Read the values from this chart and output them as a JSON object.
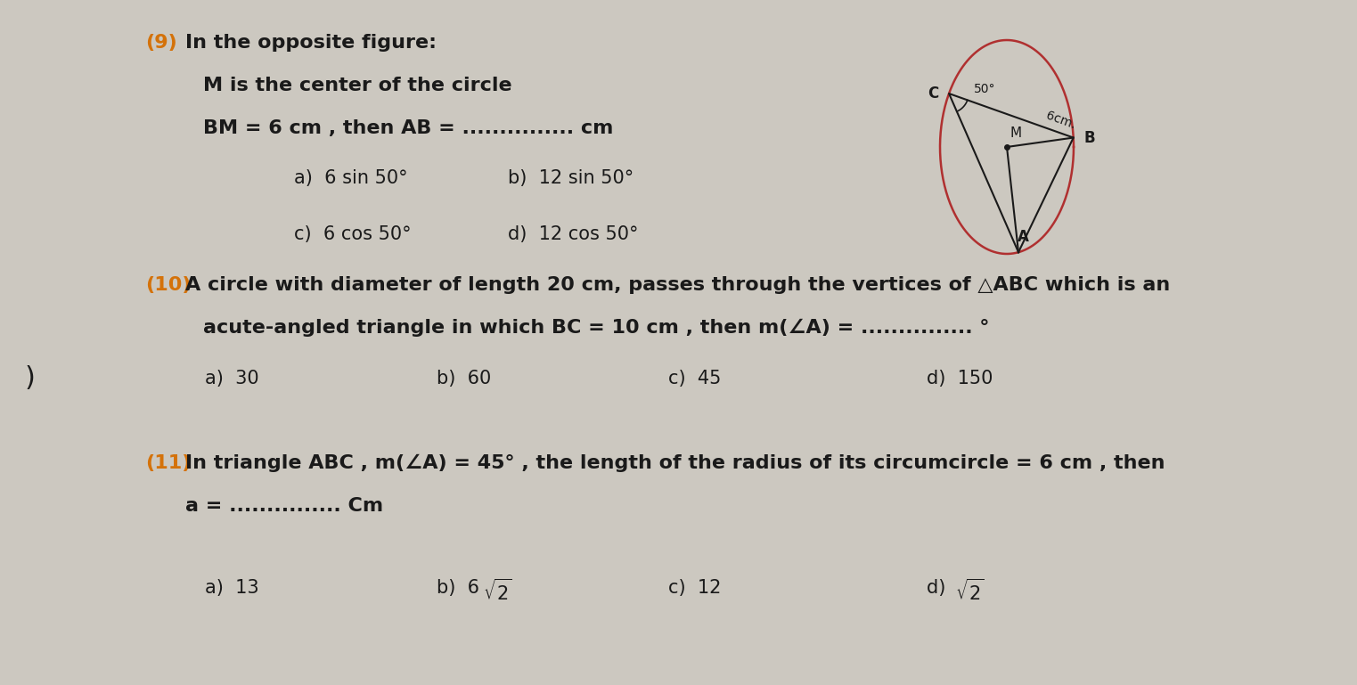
{
  "bg_color": "#ccc8c0",
  "text_color": "#1a1a1a",
  "orange_color": "#d4720a",
  "red_color": "#b03030",
  "fig_width": 15.23,
  "fig_height": 7.69,
  "q9_number": "(9)",
  "q9_line1": "In the opposite figure:",
  "q9_line2": "M is the center of the circle",
  "q9_line3": "BM = 6 cm , then AB = ............... cm",
  "q9_a": "a)  6 sin 50°",
  "q9_b": "b)  12 sin 50°",
  "q9_c": "c)  6 cos 50°",
  "q9_d": "d)  12 cos 50°",
  "q10_number": "(10)",
  "q10_line1": "A circle with diameter of length 20 cm, passes through the vertices of △ABC which is an",
  "q10_line2": "acute-angled triangle in which BC = 10 cm , then m(∠A) = ............... °",
  "q10_a": "a)  30",
  "q10_b": "b)  60",
  "q10_c": "c)  45",
  "q10_d": "d)  150",
  "q11_number": "(11)",
  "q11_line1": "In triangle ABC , m(∠A) = 45° , the length of the radius of its circumcircle = 6 cm , then",
  "q11_line2": "a = ............... Cm",
  "q11_a": "a)  13",
  "q11_c": "c)  12"
}
